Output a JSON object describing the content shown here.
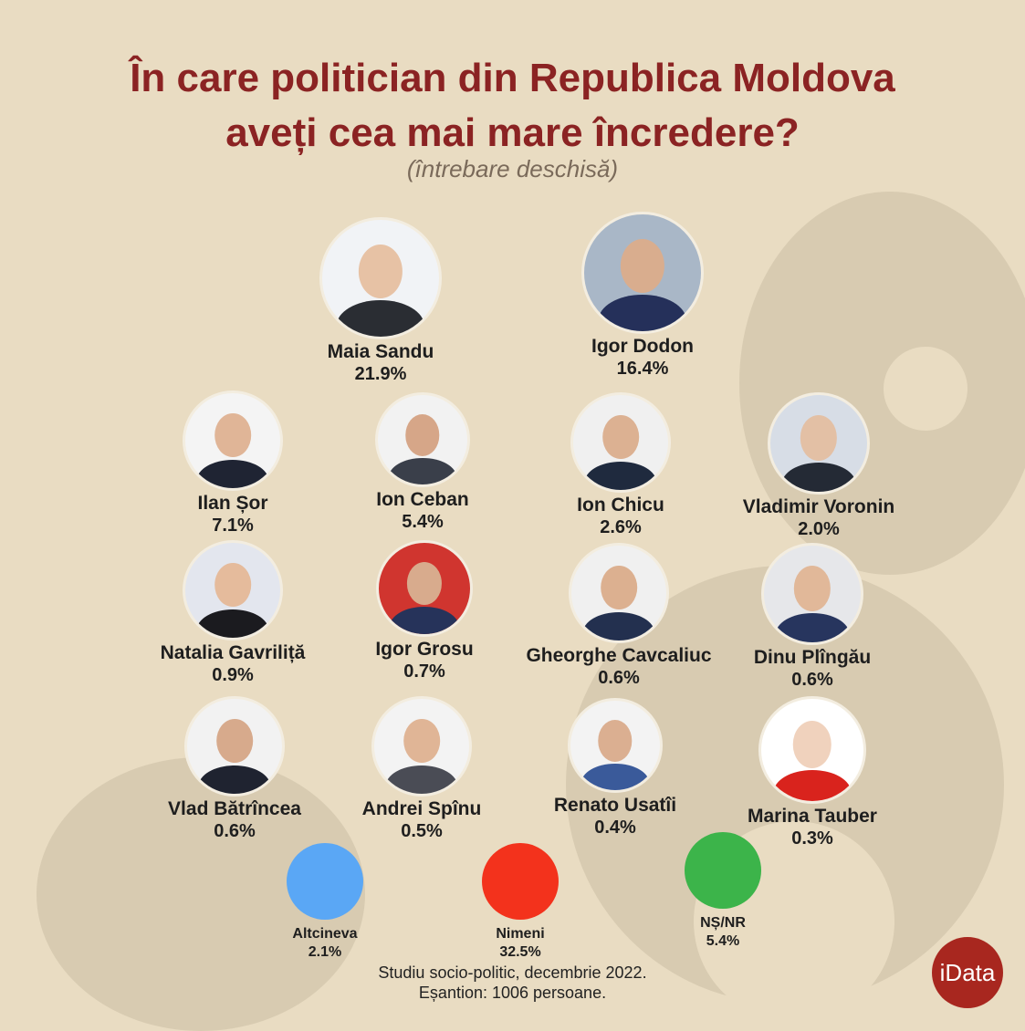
{
  "chart_data": {
    "type": "bar",
    "title": "În care politician din Republica Moldova",
    "title_line2": "aveți cea mai mare încredere?",
    "subtitle": "(întrebare deschisă)",
    "categories": [
      "Maia Sandu",
      "Igor Dodon",
      "Ilan Șor",
      "Ion Ceban",
      "Ion Chicu",
      "Vladimir Voronin",
      "Natalia Gavriliță",
      "Igor Grosu",
      "Gheorghe Cavcaliuc",
      "Dinu Plîngău",
      "Vlad Bătrîncea",
      "Andrei Spînu",
      "Renato Usatîi",
      "Marina Tauber",
      "Altcineva",
      "Nimeni",
      "NȘ/NR"
    ],
    "value_labels": [
      "21.9%",
      "16.4%",
      "7.1%",
      "5.4%",
      "2.6%",
      "2.0%",
      "0.9%",
      "0.7%",
      "0.6%",
      "0.6%",
      "0.6%",
      "0.5%",
      "0.4%",
      "0.3%",
      "2.1%",
      "32.5%",
      "5.4%"
    ],
    "values": [
      21.9,
      16.4,
      7.1,
      5.4,
      2.6,
      2.0,
      0.9,
      0.7,
      0.6,
      0.6,
      0.6,
      0.5,
      0.4,
      0.3,
      2.1,
      32.5,
      5.4
    ],
    "other_colors": [
      "#5aa7f5",
      "#f3321c",
      "#3cb44a"
    ]
  },
  "footer": {
    "line1": "Studiu socio-politic, decembrie 2022.",
    "line2": "Eșantion: 1006 persoane."
  },
  "logo": {
    "text": "iData",
    "color": "#a8271f"
  }
}
